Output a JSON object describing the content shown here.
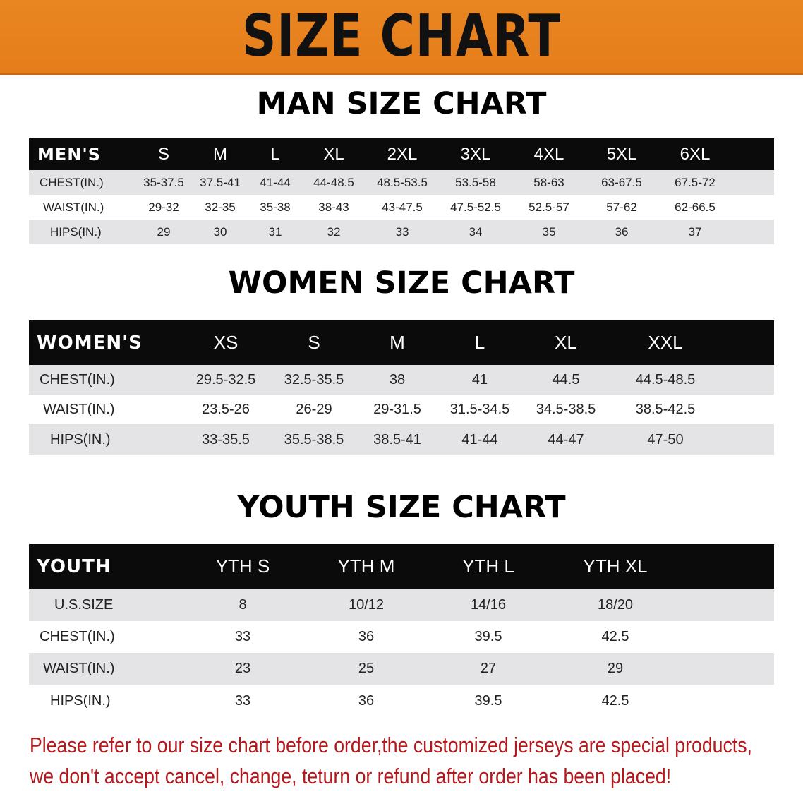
{
  "banner": {
    "title": "SIZE CHART",
    "color": "#e8821f"
  },
  "men": {
    "title": "MAN SIZE CHART",
    "header": [
      "MEN'S",
      "S",
      "M",
      "L",
      "XL",
      "2XL",
      "3XL",
      "4XL",
      "5XL",
      "6XL"
    ],
    "rows": [
      [
        "CHEST(IN.)",
        "35-37.5",
        "37.5-41",
        "41-44",
        "44-48.5",
        "48.5-53.5",
        "53.5-58",
        "58-63",
        "63-67.5",
        "67.5-72"
      ],
      [
        "WAIST(IN.)",
        "29-32",
        "32-35",
        "35-38",
        "38-43",
        "43-47.5",
        "47.5-52.5",
        "52.5-57",
        "57-62",
        "62-66.5"
      ],
      [
        "HIPS(IN.)",
        "29",
        "30",
        "31",
        "32",
        "33",
        "34",
        "35",
        "36",
        "37"
      ]
    ]
  },
  "women": {
    "title": "WOMEN SIZE CHART",
    "header": [
      "WOMEN'S",
      "XS",
      "S",
      "M",
      "L",
      "XL",
      "XXL"
    ],
    "rows": [
      [
        "CHEST(IN.)",
        "29.5-32.5",
        "32.5-35.5",
        "38",
        "41",
        "44.5",
        "44.5-48.5"
      ],
      [
        "WAIST(IN.)",
        "23.5-26",
        "26-29",
        "29-31.5",
        "31.5-34.5",
        "34.5-38.5",
        "38.5-42.5"
      ],
      [
        "HIPS(IN.)",
        "33-35.5",
        "35.5-38.5",
        "38.5-41",
        "41-44",
        "44-47",
        "47-50"
      ]
    ]
  },
  "youth": {
    "title": "YOUTH SIZE CHART",
    "header": [
      "YOUTH",
      "YTH S",
      "YTH M",
      "YTH L",
      "YTH XL"
    ],
    "rows": [
      [
        "U.S.SIZE",
        "8",
        "10/12",
        "14/16",
        "18/20"
      ],
      [
        "CHEST(IN.)",
        "33",
        "36",
        "39.5",
        "42.5"
      ],
      [
        "WAIST(IN.)",
        "23",
        "25",
        "27",
        "29"
      ],
      [
        "HIPS(IN.)",
        "33",
        "36",
        "39.5",
        "42.5"
      ]
    ]
  },
  "notice": {
    "line1": "Please refer to our size chart before order,the customized jerseys are special products,",
    "line2": "we don't accept cancel, change, teturn or refund after order has been placed!",
    "color": "#b3191c"
  }
}
